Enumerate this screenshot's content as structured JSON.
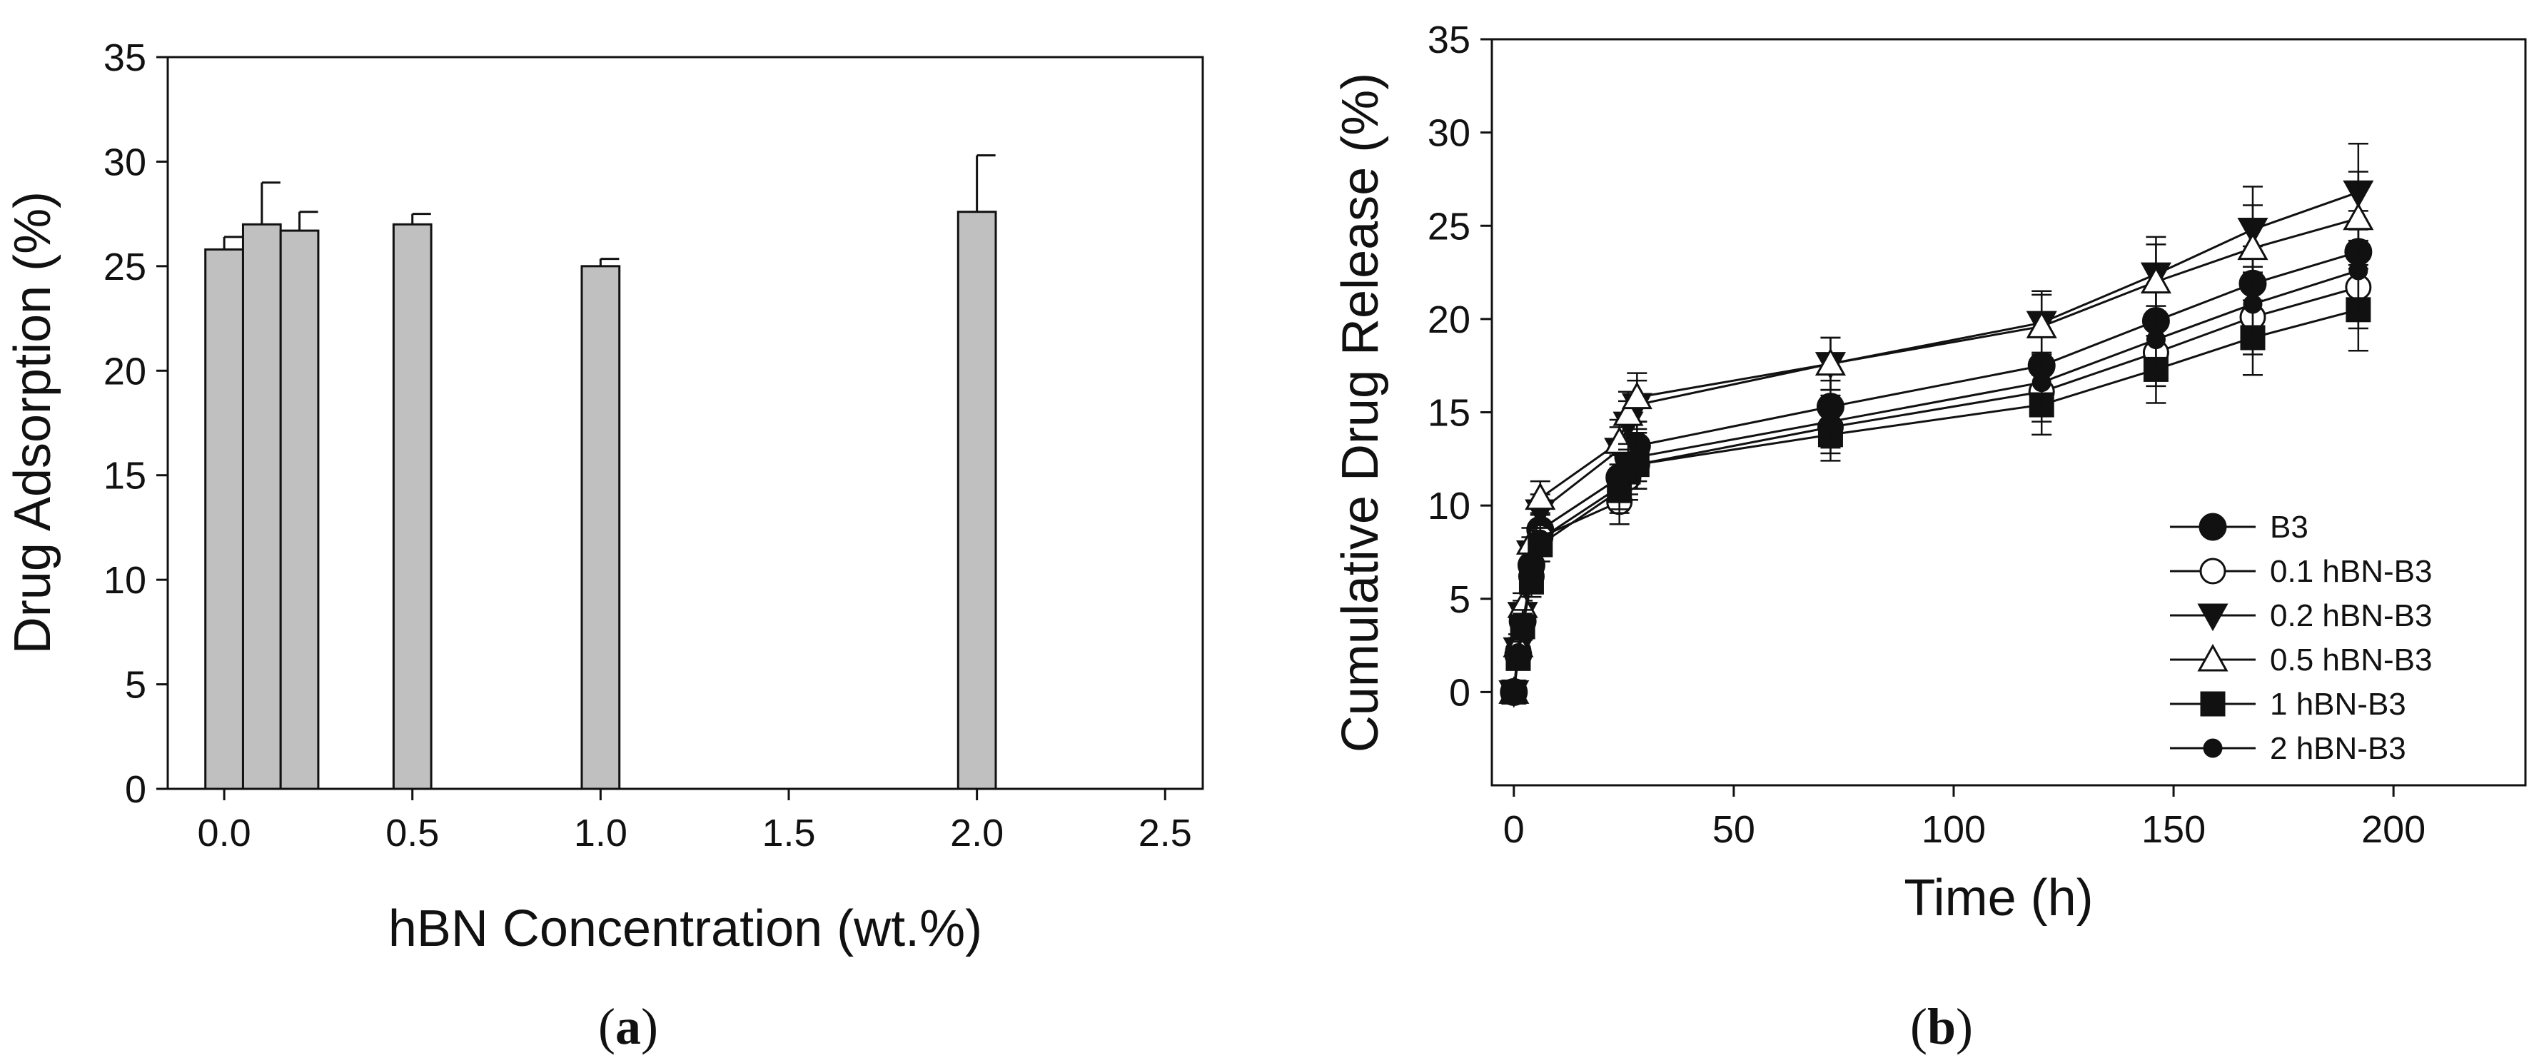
{
  "chart_data": [
    {
      "type": "bar",
      "panel_label": {
        "open": "(",
        "letter": "a",
        "close": ")"
      },
      "xlabel": "hBN Concentration (wt.%)",
      "ylabel": "Drug Adsorption (%)",
      "xlim": [
        -0.15,
        2.6
      ],
      "ylim": [
        0,
        35
      ],
      "xticks": [
        "0.0",
        "0.5",
        "1.0",
        "1.5",
        "2.0",
        "2.5"
      ],
      "xtick_values": [
        0.0,
        0.5,
        1.0,
        1.5,
        2.0,
        2.5
      ],
      "yticks": [
        "0",
        "5",
        "10",
        "15",
        "20",
        "25",
        "30",
        "35"
      ],
      "ytick_values": [
        0,
        5,
        10,
        15,
        20,
        25,
        30,
        35
      ],
      "bar_width": 0.1,
      "bar_color": "#c0c0c0",
      "x": [
        0.0,
        0.1,
        0.2,
        0.5,
        1.0,
        2.0
      ],
      "values": [
        25.8,
        27.0,
        26.7,
        27.0,
        25.0,
        27.6
      ],
      "errors": [
        0.6,
        2.0,
        0.9,
        0.5,
        0.35,
        2.7
      ]
    },
    {
      "type": "line",
      "panel_label": {
        "open": "(",
        "letter": "b",
        "close": ")"
      },
      "xlabel": "Time (h)",
      "ylabel": "Cumulative Drug Release (%)",
      "xlim": [
        -5,
        230
      ],
      "ylim": [
        -5,
        35
      ],
      "xticks": [
        "0",
        "50",
        "100",
        "150",
        "200"
      ],
      "xtick_values": [
        0,
        50,
        100,
        150,
        200
      ],
      "yticks": [
        "0",
        "5",
        "10",
        "15",
        "20",
        "25",
        "30",
        "35"
      ],
      "ytick_values": [
        0,
        5,
        10,
        15,
        20,
        25,
        30,
        35
      ],
      "legend_position": "bottom-right",
      "x": [
        0,
        1,
        2,
        4,
        6,
        24,
        26,
        28,
        72,
        120,
        146,
        168,
        192
      ],
      "series": [
        {
          "name": "B3",
          "marker": "circle-filled",
          "values": [
            0,
            2.0,
            3.8,
            6.8,
            8.7,
            11.5,
            12.6,
            13.2,
            15.3,
            17.5,
            19.9,
            21.9,
            23.6
          ],
          "errors": [
            0.5,
            0.6,
            0.7,
            0.8,
            0.9,
            1.2,
            1.2,
            1.3,
            1.4,
            1.6,
            1.8,
            2.0,
            2.2
          ]
        },
        {
          "name": "0.1 hBN-B3",
          "marker": "circle-open",
          "values": [
            0,
            2.2,
            3.9,
            6.2,
            8.3,
            10.2,
            11.5,
            12.2,
            14.2,
            16.1,
            18.2,
            20.1,
            21.7
          ],
          "errors": [
            0.5,
            0.6,
            0.7,
            0.8,
            0.9,
            1.2,
            1.2,
            1.3,
            1.4,
            1.6,
            1.8,
            2.0,
            2.2
          ]
        },
        {
          "name": "0.2 hBN-B3",
          "marker": "triangle-down-filled",
          "values": [
            0,
            2.3,
            4.2,
            7.5,
            9.7,
            13.0,
            14.4,
            15.4,
            17.6,
            19.8,
            22.4,
            24.8,
            26.8
          ],
          "errors": [
            0.5,
            0.6,
            0.7,
            0.8,
            0.9,
            1.2,
            1.2,
            1.3,
            1.4,
            1.7,
            2.0,
            2.3,
            2.6
          ]
        },
        {
          "name": "0.5 hBN-B3",
          "marker": "triangle-up-open",
          "values": [
            0,
            2.5,
            4.6,
            8.0,
            10.4,
            13.4,
            14.9,
            15.8,
            17.6,
            19.6,
            22.0,
            23.8,
            25.4
          ],
          "errors": [
            0.5,
            0.6,
            0.7,
            0.8,
            0.9,
            1.2,
            1.2,
            1.3,
            1.4,
            1.7,
            2.0,
            2.3,
            2.5
          ]
        },
        {
          "name": "1 hBN-B3",
          "marker": "square-filled",
          "values": [
            0,
            1.8,
            3.5,
            5.9,
            7.9,
            10.8,
            11.8,
            12.2,
            13.8,
            15.4,
            17.3,
            19.0,
            20.5
          ],
          "errors": [
            0.5,
            0.6,
            0.7,
            0.8,
            0.9,
            1.2,
            1.2,
            1.3,
            1.4,
            1.6,
            1.8,
            2.0,
            2.2
          ]
        },
        {
          "name": "2 hBN-B3",
          "marker": "circle-small-filled",
          "values": [
            0,
            2.1,
            3.7,
            6.4,
            8.2,
            11.0,
            12.1,
            12.6,
            14.5,
            16.6,
            18.9,
            20.8,
            22.6
          ],
          "errors": [
            0.5,
            0.6,
            0.7,
            0.8,
            0.9,
            1.2,
            1.2,
            1.3,
            1.4,
            1.6,
            1.8,
            2.0,
            2.2
          ]
        }
      ]
    }
  ]
}
